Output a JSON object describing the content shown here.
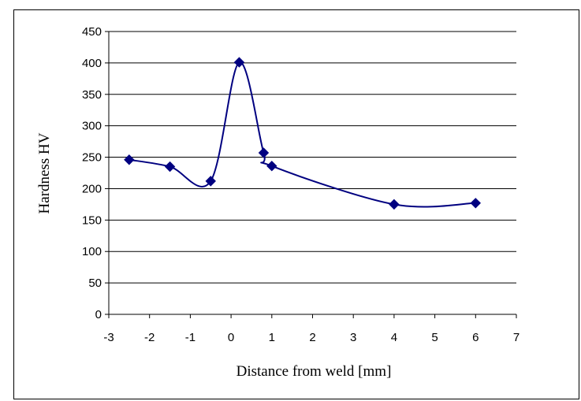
{
  "chart_data": {
    "type": "line",
    "title": "",
    "xlabel": "Distance from weld [mm]",
    "ylabel": "Hardness HV",
    "xlim": [
      -3,
      7
    ],
    "ylim": [
      0,
      450
    ],
    "x_ticks": [
      -3,
      -2,
      -1,
      0,
      1,
      2,
      3,
      4,
      5,
      6,
      7
    ],
    "y_ticks": [
      0,
      50,
      100,
      150,
      200,
      250,
      300,
      350,
      400,
      450
    ],
    "grid": "horizontal",
    "legend": "none",
    "series": [
      {
        "x": [
          -2.5,
          -1.5,
          -0.5,
          0.2,
          0.8,
          1,
          4,
          6
        ],
        "y": [
          246,
          235,
          212,
          401,
          257,
          236,
          175,
          177
        ],
        "marker": "diamond",
        "smooth": true,
        "color": "#000080"
      }
    ]
  }
}
